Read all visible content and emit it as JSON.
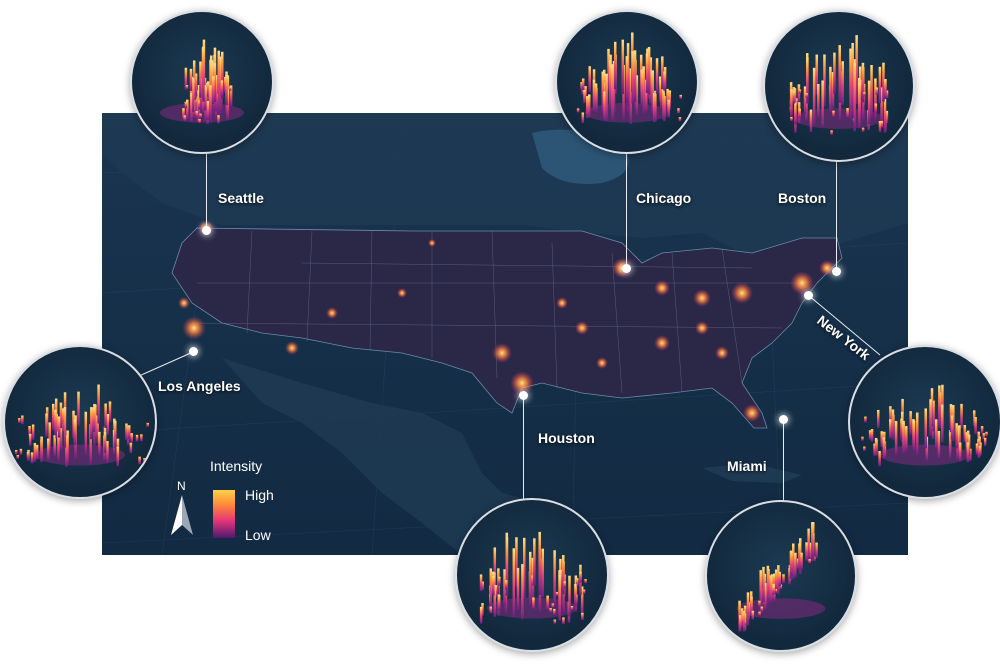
{
  "legend": {
    "title": "Intensity",
    "high_label": "High",
    "low_label": "Low",
    "north_label": "N",
    "gradient_colors": [
      "#ffd24a",
      "#ff8b3a",
      "#e2337a",
      "#4b1a6e"
    ]
  },
  "cities": [
    {
      "key": "seattle",
      "label": "Seattle"
    },
    {
      "key": "chicago",
      "label": "Chicago"
    },
    {
      "key": "boston",
      "label": "Boston"
    },
    {
      "key": "new_york",
      "label": "New York"
    },
    {
      "key": "los_angeles",
      "label": "Los Angeles"
    },
    {
      "key": "houston",
      "label": "Houston"
    },
    {
      "key": "miami",
      "label": "Miami"
    }
  ],
  "colors": {
    "ocean": "#163049",
    "land_us": "#2b2747",
    "land_other": "#1a344c",
    "glow": "#ff9a3c",
    "spike_high": "#ffd86a",
    "spike_low": "#8a2a8a"
  }
}
